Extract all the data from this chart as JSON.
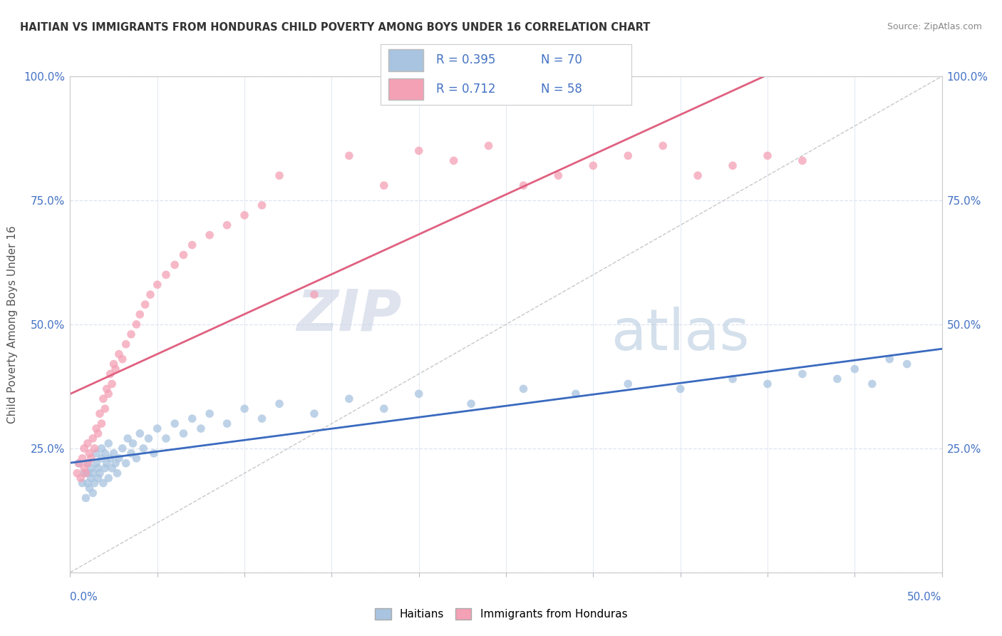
{
  "title": "HAITIAN VS IMMIGRANTS FROM HONDURAS CHILD POVERTY AMONG BOYS UNDER 16 CORRELATION CHART",
  "source": "Source: ZipAtlas.com",
  "ylabel": "Child Poverty Among Boys Under 16",
  "watermark_zip": "ZIP",
  "watermark_atlas": "atlas",
  "legend_r1": "R = 0.395",
  "legend_n1": "N = 70",
  "legend_r2": "R = 0.712",
  "legend_n2": "N = 58",
  "haitian_color": "#a8c4e0",
  "honduras_color": "#f4a0b5",
  "haitian_line_color": "#3a6abf",
  "honduras_line_color": "#e06080",
  "diagonal_color": "#c8c8c8",
  "scatter_alpha": 0.75,
  "scatter_size": 70,
  "haitian_points_x": [
    0.005,
    0.007,
    0.008,
    0.009,
    0.01,
    0.01,
    0.01,
    0.011,
    0.012,
    0.012,
    0.013,
    0.013,
    0.014,
    0.015,
    0.015,
    0.016,
    0.016,
    0.017,
    0.018,
    0.018,
    0.019,
    0.02,
    0.02,
    0.021,
    0.022,
    0.022,
    0.023,
    0.024,
    0.025,
    0.026,
    0.027,
    0.028,
    0.03,
    0.032,
    0.033,
    0.035,
    0.036,
    0.038,
    0.04,
    0.042,
    0.045,
    0.048,
    0.05,
    0.055,
    0.06,
    0.065,
    0.07,
    0.075,
    0.08,
    0.09,
    0.1,
    0.11,
    0.12,
    0.14,
    0.16,
    0.18,
    0.2,
    0.23,
    0.26,
    0.29,
    0.32,
    0.35,
    0.38,
    0.4,
    0.42,
    0.44,
    0.45,
    0.46,
    0.47,
    0.48
  ],
  "haitian_points_y": [
    0.22,
    0.18,
    0.2,
    0.15,
    0.18,
    0.2,
    0.22,
    0.17,
    0.19,
    0.21,
    0.16,
    0.2,
    0.18,
    0.22,
    0.24,
    0.19,
    0.21,
    0.2,
    0.23,
    0.25,
    0.18,
    0.21,
    0.24,
    0.22,
    0.19,
    0.26,
    0.23,
    0.21,
    0.24,
    0.22,
    0.2,
    0.23,
    0.25,
    0.22,
    0.27,
    0.24,
    0.26,
    0.23,
    0.28,
    0.25,
    0.27,
    0.24,
    0.29,
    0.27,
    0.3,
    0.28,
    0.31,
    0.29,
    0.32,
    0.3,
    0.33,
    0.31,
    0.34,
    0.32,
    0.35,
    0.33,
    0.36,
    0.34,
    0.37,
    0.36,
    0.38,
    0.37,
    0.39,
    0.38,
    0.4,
    0.39,
    0.41,
    0.38,
    0.43,
    0.42
  ],
  "honduras_points_x": [
    0.004,
    0.005,
    0.006,
    0.007,
    0.008,
    0.008,
    0.009,
    0.01,
    0.01,
    0.011,
    0.012,
    0.013,
    0.014,
    0.015,
    0.016,
    0.017,
    0.018,
    0.019,
    0.02,
    0.021,
    0.022,
    0.023,
    0.024,
    0.025,
    0.026,
    0.028,
    0.03,
    0.032,
    0.035,
    0.038,
    0.04,
    0.043,
    0.046,
    0.05,
    0.055,
    0.06,
    0.065,
    0.07,
    0.08,
    0.09,
    0.1,
    0.11,
    0.12,
    0.14,
    0.16,
    0.18,
    0.2,
    0.22,
    0.24,
    0.26,
    0.28,
    0.3,
    0.32,
    0.34,
    0.36,
    0.38,
    0.4,
    0.42
  ],
  "honduras_points_y": [
    0.2,
    0.22,
    0.19,
    0.23,
    0.21,
    0.25,
    0.2,
    0.22,
    0.26,
    0.24,
    0.23,
    0.27,
    0.25,
    0.29,
    0.28,
    0.32,
    0.3,
    0.35,
    0.33,
    0.37,
    0.36,
    0.4,
    0.38,
    0.42,
    0.41,
    0.44,
    0.43,
    0.46,
    0.48,
    0.5,
    0.52,
    0.54,
    0.56,
    0.58,
    0.6,
    0.62,
    0.64,
    0.66,
    0.68,
    0.7,
    0.72,
    0.74,
    0.8,
    0.56,
    0.84,
    0.78,
    0.85,
    0.83,
    0.86,
    0.78,
    0.8,
    0.82,
    0.84,
    0.86,
    0.8,
    0.82,
    0.84,
    0.83
  ],
  "background_color": "#ffffff",
  "grid_color": "#dde4f0",
  "title_color": "#333333",
  "axis_label_color": "#4472c4",
  "xlim": [
    0.0,
    0.5
  ],
  "ylim": [
    0.0,
    1.0
  ],
  "ytick_positions": [
    0.0,
    0.25,
    0.5,
    0.75,
    1.0
  ],
  "ytick_labels": [
    "",
    "25.0%",
    "50.0%",
    "75.0%",
    "100.0%"
  ]
}
